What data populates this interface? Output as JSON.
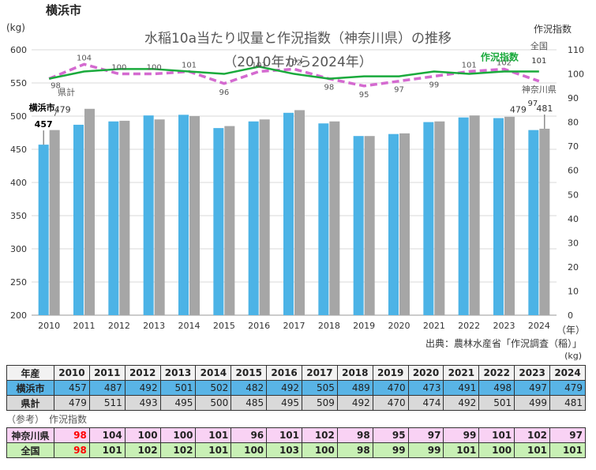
{
  "header": {
    "city_name": "横浜市",
    "title": "水稲10a当たり収量と作況指数（神奈川県）の推移",
    "subtitle": "（2010年から2024年）",
    "left_axis_unit": "(kg)",
    "right_axis_unit": "作況指数",
    "year_unit": "（年）",
    "source": "出典：農林水産省「作況調査（稲）」",
    "table_unit": "(kg)"
  },
  "chart_data": {
    "type": "bar",
    "categories": [
      "2010",
      "2011",
      "2012",
      "2013",
      "2014",
      "2015",
      "2016",
      "2017",
      "2018",
      "2019",
      "2020",
      "2021",
      "2022",
      "2023",
      "2024"
    ],
    "series": [
      {
        "name": "横浜市",
        "values": [
          457,
          487,
          492,
          501,
          502,
          482,
          492,
          505,
          489,
          470,
          473,
          491,
          498,
          497,
          479
        ],
        "color": "#4cb3e6"
      },
      {
        "name": "県計",
        "values": [
          479,
          511,
          493,
          495,
          500,
          485,
          495,
          509,
          492,
          470,
          474,
          492,
          501,
          499,
          481
        ],
        "color": "#a6a6a6"
      }
    ],
    "lines": [
      {
        "name": "作況指数",
        "scope": "全国",
        "values": [
          98,
          101,
          102,
          102,
          101,
          100,
          103,
          100,
          98,
          99,
          99,
          101,
          100,
          101,
          101
        ],
        "color": "#1aaa3c"
      },
      {
        "name": "神奈川県",
        "values": [
          98,
          104,
          100,
          100,
          101,
          96,
          101,
          102,
          98,
          95,
          97,
          99,
          101,
          102,
          97
        ],
        "color": "#d46ad0"
      }
    ],
    "ylim": [
      200,
      600
    ],
    "yticks": [
      200,
      250,
      300,
      350,
      400,
      450,
      500,
      550,
      600
    ],
    "y2lim": [
      0,
      110
    ],
    "y2ticks": [
      0,
      10,
      20,
      30,
      40,
      50,
      60,
      70,
      80,
      90,
      100,
      110
    ],
    "labels": {
      "city_series": "横浜市",
      "pref_series": "県計",
      "index_legend": "作況指数",
      "nation_label": "全国",
      "kanagawa_label": "神奈川県"
    }
  },
  "table": {
    "header_label": "年産",
    "years": [
      "2010",
      "2011",
      "2012",
      "2013",
      "2014",
      "2015",
      "2016",
      "2017",
      "2018",
      "2019",
      "2020",
      "2021",
      "2022",
      "2023",
      "2024"
    ],
    "rows": [
      {
        "label": "横浜市",
        "values": [
          "457",
          "487",
          "492",
          "501",
          "502",
          "482",
          "492",
          "505",
          "489",
          "470",
          "473",
          "491",
          "498",
          "497",
          "479"
        ]
      },
      {
        "label": "県計",
        "values": [
          "479",
          "511",
          "493",
          "495",
          "500",
          "485",
          "495",
          "509",
          "492",
          "470",
          "474",
          "492",
          "501",
          "499",
          "481"
        ]
      }
    ],
    "ref_note": "（参考）　作況指数",
    "ref_rows": [
      {
        "label": "神奈川県",
        "values": [
          "98",
          "104",
          "100",
          "100",
          "101",
          "96",
          "101",
          "102",
          "98",
          "95",
          "97",
          "99",
          "101",
          "102",
          "97"
        ]
      },
      {
        "label": "全国",
        "values": [
          "98",
          "101",
          "102",
          "102",
          "101",
          "100",
          "103",
          "100",
          "98",
          "99",
          "99",
          "101",
          "100",
          "101",
          "101"
        ]
      }
    ],
    "highlight_color": "#ff0000"
  }
}
